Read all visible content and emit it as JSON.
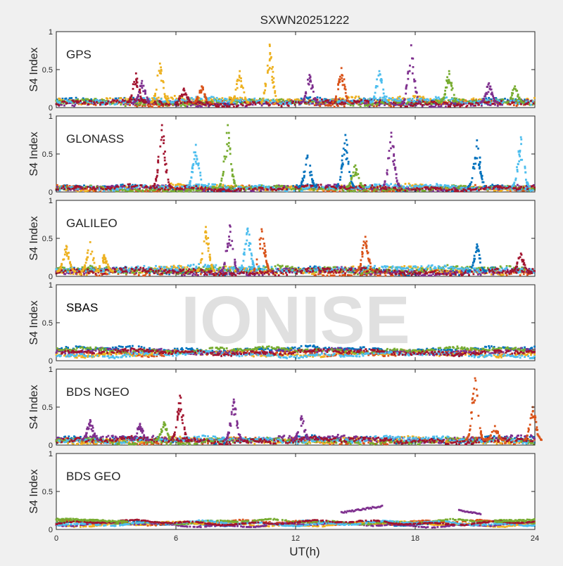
{
  "chart_data": {
    "type": "scatter",
    "title": "SXWN20251222",
    "xlabel": "UT(h)",
    "ylabel": "S4 Index",
    "watermark": "IONISE",
    "xlim": [
      0,
      24
    ],
    "ylim": [
      0,
      1
    ],
    "xticks": [
      0,
      6,
      12,
      18,
      24
    ],
    "yticks": [
      0,
      0.5,
      1
    ],
    "grid": false,
    "colors": [
      "#0072BD",
      "#D95319",
      "#EDB120",
      "#7E2F8E",
      "#77AC30",
      "#4DBEEE",
      "#A2142F"
    ],
    "panels": [
      {
        "name": "GPS",
        "baseline": [
          0.08,
          0.06,
          0.1,
          0.05,
          0.07,
          0.09,
          0.06
        ],
        "noise": 0.025,
        "bursts": [
          {
            "x": 4.0,
            "peak": 0.45,
            "color": 6
          },
          {
            "x": 4.3,
            "peak": 0.35,
            "color": 3
          },
          {
            "x": 5.2,
            "peak": 0.58,
            "color": 2
          },
          {
            "x": 6.4,
            "peak": 0.25,
            "color": 6
          },
          {
            "x": 7.3,
            "peak": 0.28,
            "color": 1
          },
          {
            "x": 9.2,
            "peak": 0.48,
            "color": 2
          },
          {
            "x": 10.7,
            "peak": 0.83,
            "color": 2
          },
          {
            "x": 12.7,
            "peak": 0.43,
            "color": 3
          },
          {
            "x": 14.3,
            "peak": 0.52,
            "color": 1
          },
          {
            "x": 16.2,
            "peak": 0.48,
            "color": 5
          },
          {
            "x": 17.8,
            "peak": 0.82,
            "color": 3
          },
          {
            "x": 19.7,
            "peak": 0.48,
            "color": 4
          },
          {
            "x": 21.7,
            "peak": 0.32,
            "color": 3
          },
          {
            "x": 23.0,
            "peak": 0.28,
            "color": 4
          }
        ]
      },
      {
        "name": "GLONASS",
        "baseline": [
          0.05,
          0.04,
          0.06,
          0.05,
          0.04,
          0.06,
          0.05
        ],
        "noise": 0.02,
        "bursts": [
          {
            "x": 5.3,
            "peak": 0.88,
            "color": 6
          },
          {
            "x": 7.0,
            "peak": 0.62,
            "color": 5
          },
          {
            "x": 8.6,
            "peak": 0.88,
            "color": 4
          },
          {
            "x": 12.6,
            "peak": 0.48,
            "color": 0
          },
          {
            "x": 14.5,
            "peak": 0.75,
            "color": 0
          },
          {
            "x": 15.0,
            "peak": 0.35,
            "color": 4
          },
          {
            "x": 16.8,
            "peak": 0.78,
            "color": 3
          },
          {
            "x": 21.1,
            "peak": 0.68,
            "color": 0
          },
          {
            "x": 23.3,
            "peak": 0.72,
            "color": 5
          }
        ]
      },
      {
        "name": "GALILEO",
        "baseline": [
          0.07,
          0.05,
          0.08,
          0.06,
          0.09,
          0.1,
          0.06
        ],
        "noise": 0.03,
        "bursts": [
          {
            "x": 0.5,
            "peak": 0.4,
            "color": 2
          },
          {
            "x": 1.7,
            "peak": 0.45,
            "color": 2
          },
          {
            "x": 2.4,
            "peak": 0.28,
            "color": 2
          },
          {
            "x": 7.5,
            "peak": 0.65,
            "color": 2
          },
          {
            "x": 8.7,
            "peak": 0.67,
            "color": 3
          },
          {
            "x": 9.6,
            "peak": 0.63,
            "color": 5
          },
          {
            "x": 10.3,
            "peak": 0.62,
            "color": 1
          },
          {
            "x": 15.5,
            "peak": 0.52,
            "color": 1
          },
          {
            "x": 21.1,
            "peak": 0.42,
            "color": 0
          },
          {
            "x": 23.3,
            "peak": 0.3,
            "color": 6
          }
        ]
      },
      {
        "name": "SBAS",
        "baseline": [
          0.15,
          0.1,
          0.09,
          0.12,
          0.14,
          0.08,
          0.11
        ],
        "noise": 0.018,
        "bursts": []
      },
      {
        "name": "BDS NGEO",
        "baseline": [
          0.07,
          0.05,
          0.06,
          0.08,
          0.05,
          0.07,
          0.06
        ],
        "noise": 0.025,
        "bursts": [
          {
            "x": 1.7,
            "peak": 0.33,
            "color": 3
          },
          {
            "x": 4.2,
            "peak": 0.28,
            "color": 3
          },
          {
            "x": 5.4,
            "peak": 0.3,
            "color": 4
          },
          {
            "x": 6.2,
            "peak": 0.65,
            "color": 6
          },
          {
            "x": 8.9,
            "peak": 0.6,
            "color": 3
          },
          {
            "x": 12.3,
            "peak": 0.38,
            "color": 3
          },
          {
            "x": 21.0,
            "peak": 0.88,
            "color": 1
          },
          {
            "x": 22.0,
            "peak": 0.25,
            "color": 1
          },
          {
            "x": 23.9,
            "peak": 0.5,
            "color": 1
          }
        ]
      },
      {
        "name": "BDS GEO",
        "baseline": [
          0.08,
          0.09,
          0.07,
          0.06,
          0.1,
          0.08,
          0.09
        ],
        "noise": 0.006,
        "bursts": [],
        "segments": [
          {
            "from": 0.0,
            "to": 3.6,
            "start": 0.14,
            "end": 0.1,
            "color": 4
          },
          {
            "from": 22.0,
            "to": 24.0,
            "start": 0.1,
            "end": 0.13,
            "color": 4
          },
          {
            "from": 14.3,
            "to": 16.4,
            "start": 0.22,
            "end": 0.31,
            "color": 3
          },
          {
            "from": 20.2,
            "to": 21.3,
            "start": 0.25,
            "end": 0.2,
            "color": 3
          }
        ]
      }
    ]
  }
}
